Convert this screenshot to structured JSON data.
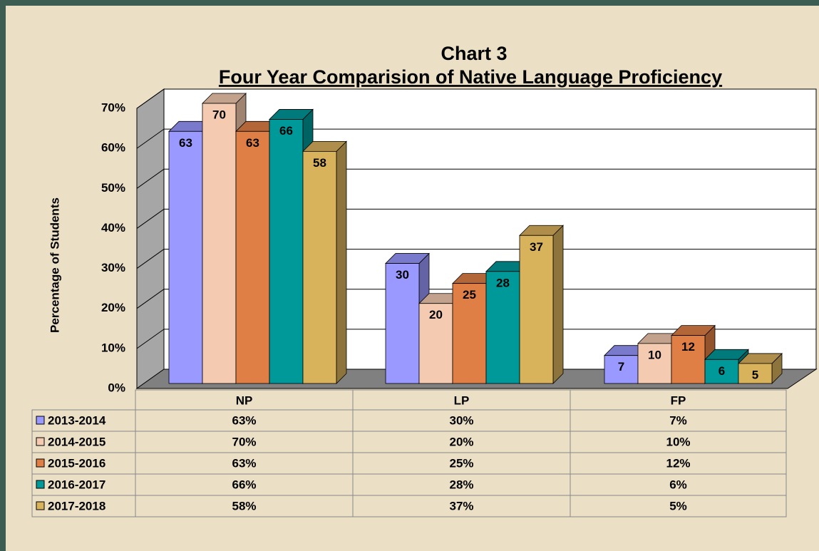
{
  "chart_data": {
    "type": "bar",
    "title": "Chart 3",
    "subtitle": "Four Year Comparision of Native Language Proficiency",
    "y_label": "Percentage of Students",
    "categories": [
      "NP",
      "LP",
      "FP"
    ],
    "series": [
      {
        "name": "2013-2014",
        "color": "#9999ff",
        "values": [
          63,
          30,
          7
        ],
        "value_labels": [
          "63%",
          "30%",
          "7%"
        ]
      },
      {
        "name": "2014-2015",
        "color": "#f4cbb0",
        "values": [
          70,
          20,
          10
        ],
        "value_labels": [
          "70%",
          "20%",
          "10%"
        ]
      },
      {
        "name": "2015-2016",
        "color": "#e07f45",
        "values": [
          63,
          25,
          12
        ],
        "value_labels": [
          "63%",
          "25%",
          "12%"
        ]
      },
      {
        "name": "2016-2017",
        "color": "#009999",
        "values": [
          66,
          28,
          6
        ],
        "value_labels": [
          "66%",
          "28%",
          "6%"
        ]
      },
      {
        "name": "2017-2018",
        "color": "#d9b25c",
        "values": [
          58,
          37,
          5
        ],
        "value_labels": [
          "58%",
          "37%",
          "5%"
        ]
      }
    ],
    "ylim": [
      0,
      70
    ],
    "yticks": [
      {
        "value": 0,
        "label": "0%"
      },
      {
        "value": 10,
        "label": "10%"
      },
      {
        "value": 20,
        "label": "20%"
      },
      {
        "value": 30,
        "label": "30%"
      },
      {
        "value": 40,
        "label": "40%"
      },
      {
        "value": 50,
        "label": "50%"
      },
      {
        "value": 60,
        "label": "60%"
      },
      {
        "value": 70,
        "label": "70%"
      }
    ],
    "grid": true
  }
}
